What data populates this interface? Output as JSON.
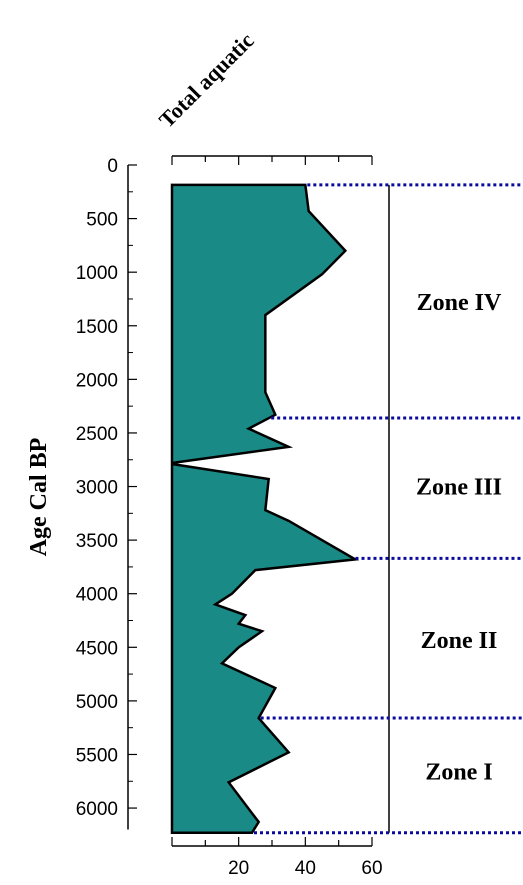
{
  "chart_data": {
    "type": "area",
    "title": "Total aquatic",
    "xlabel": "",
    "ylabel": "Age Cal BP",
    "xlim": [
      0,
      60
    ],
    "ylim": [
      0,
      6200
    ],
    "y_inverted": true,
    "grid": false,
    "x_ticks_major": [
      0,
      20,
      40,
      60
    ],
    "x_ticks_minor": [
      10,
      30,
      50
    ],
    "x_tick_labels": [
      "20",
      "40",
      "60"
    ],
    "y_ticks": [
      0,
      500,
      1000,
      1500,
      2000,
      2500,
      3000,
      3500,
      4000,
      4500,
      5000,
      5500,
      6000
    ],
    "y_tick_labels": [
      "0",
      "500",
      "1000",
      "1500",
      "2000",
      "2500",
      "3000",
      "3500",
      "4000",
      "4500",
      "5000",
      "5500",
      "6000"
    ],
    "fill_color": "#1a8a87",
    "stroke_color": "#000000",
    "zone_line_color": "#0a0a9e",
    "series": [
      {
        "ages": [
          185,
          430,
          800,
          1020,
          1400,
          1900,
          2120,
          2330,
          2460,
          2630,
          2780,
          2790,
          2930,
          3220,
          3320,
          3680,
          3780,
          4000,
          4100,
          4200,
          4280,
          4350,
          4500,
          4650,
          4880,
          5160,
          5480,
          5760,
          6130,
          6230
        ],
        "values": [
          40,
          41,
          52,
          45,
          28,
          28,
          28,
          31,
          23,
          35,
          0,
          0,
          29,
          28,
          35,
          55,
          25,
          18,
          13,
          22,
          20,
          27,
          20,
          15,
          31,
          26,
          35,
          17,
          26,
          24
        ]
      }
    ],
    "zone_boundaries": [
      185,
      2360,
      3670,
      5160,
      6230
    ],
    "zones": [
      {
        "label": "Zone IV",
        "age": 1280
      },
      {
        "label": "Zone III",
        "age": 3000
      },
      {
        "label": "Zone II",
        "age": 4430
      },
      {
        "label": "Zone I",
        "age": 5660
      }
    ]
  }
}
